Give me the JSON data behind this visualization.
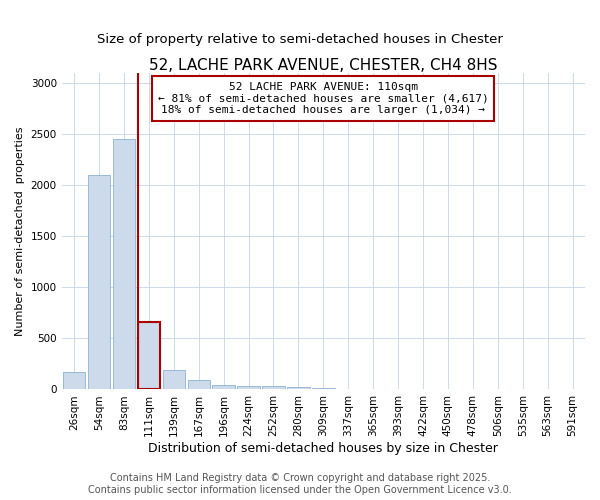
{
  "title": "52, LACHE PARK AVENUE, CHESTER, CH4 8HS",
  "subtitle": "Size of property relative to semi-detached houses in Chester",
  "xlabel": "Distribution of semi-detached houses by size in Chester",
  "ylabel": "Number of semi-detached  properties",
  "categories": [
    "26sqm",
    "54sqm",
    "83sqm",
    "111sqm",
    "139sqm",
    "167sqm",
    "196sqm",
    "224sqm",
    "252sqm",
    "280sqm",
    "309sqm",
    "337sqm",
    "365sqm",
    "393sqm",
    "422sqm",
    "450sqm",
    "478sqm",
    "506sqm",
    "535sqm",
    "563sqm",
    "591sqm"
  ],
  "values": [
    175,
    2100,
    2450,
    660,
    195,
    90,
    45,
    38,
    30,
    20,
    15,
    0,
    0,
    0,
    0,
    0,
    0,
    0,
    0,
    0,
    0
  ],
  "bar_color": "#ccdaeb",
  "bar_edgecolor": "#7aa8cc",
  "bar_linewidth": 0.5,
  "highlight_bar_index": 3,
  "highlight_edgecolor": "#aa0000",
  "highlight_linewidth": 1.5,
  "vline_color": "#aa0000",
  "vline_linewidth": 1.5,
  "annotation_title": "52 LACHE PARK AVENUE: 110sqm",
  "annotation_line1": "← 81% of semi-detached houses are smaller (4,617)",
  "annotation_line2": "18% of semi-detached houses are larger (1,034) →",
  "annotation_box_facecolor": "#ffffff",
  "annotation_box_edgecolor": "#aa0000",
  "ylim": [
    0,
    3100
  ],
  "yticks": [
    0,
    500,
    1000,
    1500,
    2000,
    2500,
    3000
  ],
  "footer1": "Contains HM Land Registry data © Crown copyright and database right 2025.",
  "footer2": "Contains public sector information licensed under the Open Government Licence v3.0.",
  "bg_color": "#ffffff",
  "plot_bg_color": "#ffffff",
  "grid_color": "#c5d5e5",
  "title_fontsize": 11,
  "subtitle_fontsize": 9.5,
  "xlabel_fontsize": 9,
  "ylabel_fontsize": 8,
  "tick_fontsize": 7.5,
  "annotation_fontsize": 8,
  "footer_fontsize": 7
}
